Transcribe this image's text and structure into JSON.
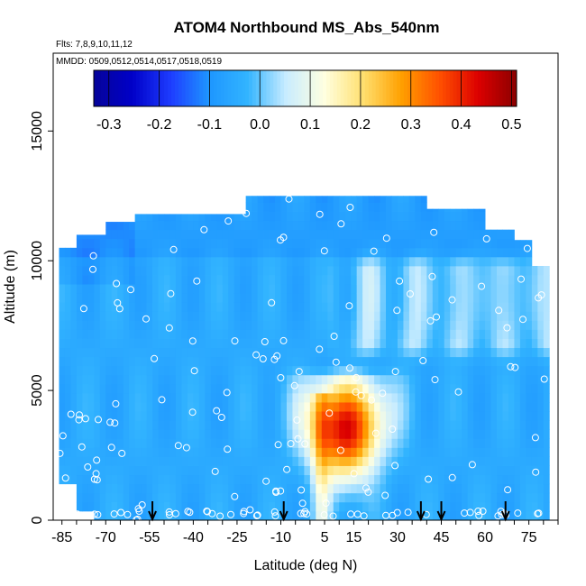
{
  "chart_data": {
    "type": "heatmap",
    "title": "ATOM4 Northbound MS_Abs_540nm",
    "notes": [
      "Flts: 7,8,9,10,11,12",
      "MMDD: 0509,0512,0514,0517,0518,0519"
    ],
    "xlabel": "Latitude (deg N)",
    "ylabel": "Altitude (m)",
    "xlim": [
      -88,
      85
    ],
    "ylim": [
      0,
      18000
    ],
    "x_ticks": [
      -85,
      -70,
      -55,
      -40,
      -25,
      -10,
      5,
      15,
      30,
      45,
      60,
      75
    ],
    "y_ticks": [
      0,
      5000,
      10000,
      15000
    ],
    "colorbar": {
      "range": [
        -0.33,
        0.51
      ],
      "ticks": [
        -0.3,
        -0.2,
        -0.1,
        0.0,
        0.1,
        0.2,
        0.3,
        0.4,
        0.5
      ],
      "tick_labels": [
        "-0.3",
        "-0.2",
        "-0.1",
        "0.0",
        "0.1",
        "0.2",
        "0.3",
        "0.4",
        "0.5"
      ],
      "colors": [
        "#06049a",
        "#0000c8",
        "#1e3cff",
        "#1e96ff",
        "#32b4ff",
        "#c8ecff",
        "#ffffe0",
        "#ffe070",
        "#ffa000",
        "#ff5000",
        "#dc0000",
        "#8b0000"
      ]
    },
    "transect_markers_lat": [
      -54,
      -9,
      38,
      45,
      67
    ],
    "field_structure": {
      "background_value": -0.05,
      "top_altitude_m": 12500,
      "plume": {
        "lat_range": [
          0,
          25
        ],
        "alt_range": [
          0,
          5500
        ],
        "peak_value": 0.42,
        "peak_lat": 12,
        "peak_alt": 3500
      },
      "upper_layer": {
        "lat_range": [
          5,
          75
        ],
        "alt_range": [
          6000,
          10500
        ],
        "value": 0.05
      }
    }
  }
}
